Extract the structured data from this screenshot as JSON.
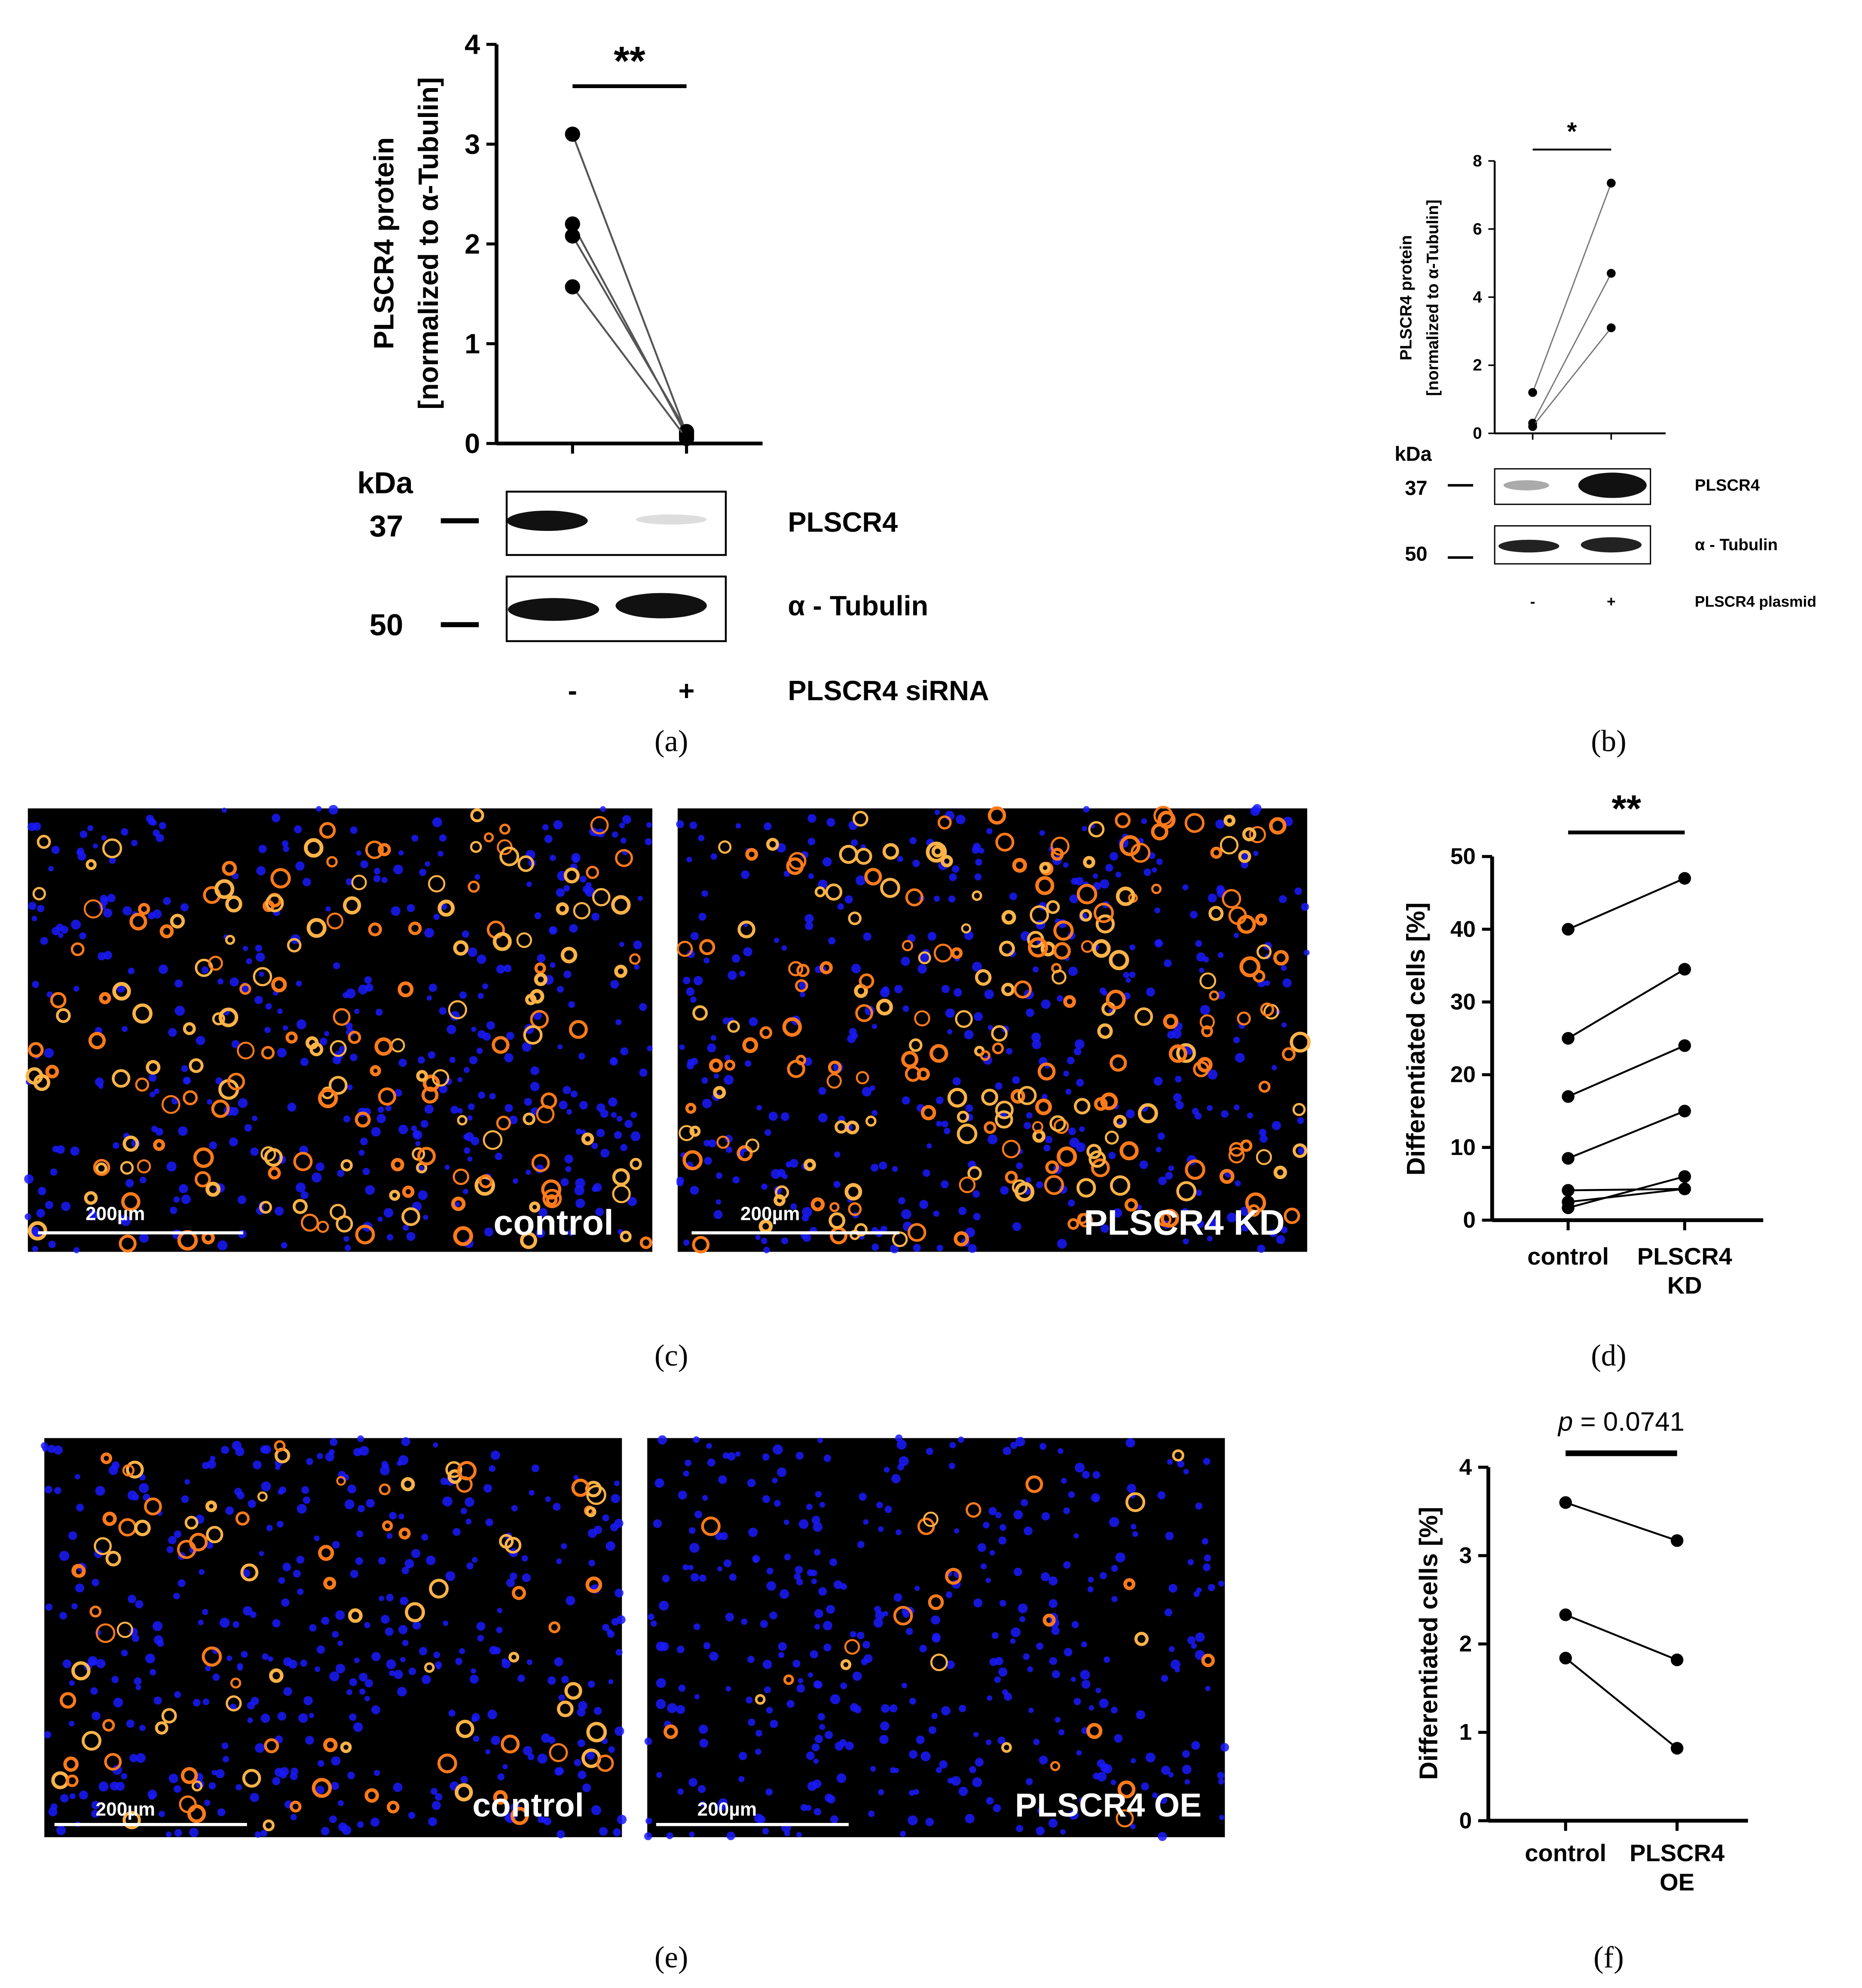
{
  "chart_data": [
    {
      "type": "line",
      "ylabel": [
        "PLSCR4 protein",
        "[normalized to α-Tubulin]"
      ],
      "categories": [
        "-",
        "+"
      ],
      "xlabel": "PLSCR4 siRNA",
      "ylim": [
        0,
        4
      ],
      "yticks": [
        0,
        1,
        2,
        3,
        4
      ],
      "line_color": "#555555",
      "marker_color": "#000000",
      "series": [
        {
          "values": [
            3.1,
            0.1
          ]
        },
        {
          "values": [
            2.2,
            0.08
          ]
        },
        {
          "values": [
            2.08,
            0.12
          ]
        },
        {
          "values": [
            1.57,
            0.05
          ]
        }
      ],
      "significance": "**",
      "blot": {
        "unit": "kDa",
        "rows": [
          {
            "kda": "37",
            "label": "PLSCR4"
          },
          {
            "kda": "50",
            "label": "α - Tubulin"
          }
        ]
      },
      "panel_label": "(a)"
    },
    {
      "type": "line",
      "ylabel": [
        "PLSCR4 protein",
        "[normalized to α-Tubulin]"
      ],
      "categories": [
        "-",
        "+"
      ],
      "xlabel": "PLSCR4 plasmid",
      "ylim": [
        0,
        8
      ],
      "yticks": [
        0,
        2,
        4,
        6,
        8
      ],
      "line_color": "#777777",
      "marker_color": "#000000",
      "series": [
        {
          "values": [
            1.2,
            7.35
          ]
        },
        {
          "values": [
            0.3,
            4.7
          ]
        },
        {
          "values": [
            0.2,
            3.1
          ]
        }
      ],
      "significance": "*",
      "blot": {
        "unit": "kDa",
        "rows": [
          {
            "kda": "37",
            "label": "PLSCR4"
          },
          {
            "kda": "50",
            "label": "α - Tubulin"
          }
        ]
      },
      "panel_label": "(b)"
    },
    {
      "type": "line",
      "ylabel": [
        "Differentiated cells [%]"
      ],
      "categories": [
        "control",
        "PLSCR4 KD"
      ],
      "ylim": [
        0,
        50
      ],
      "yticks": [
        0,
        10,
        20,
        30,
        40,
        50
      ],
      "line_color": "#000000",
      "marker_color": "#000000",
      "series": [
        {
          "values": [
            40,
            47
          ]
        },
        {
          "values": [
            25,
            34.5
          ]
        },
        {
          "values": [
            17,
            24
          ]
        },
        {
          "values": [
            8.5,
            15
          ]
        },
        {
          "values": [
            4.1,
            4.3
          ]
        },
        {
          "values": [
            2.5,
            4.3
          ]
        },
        {
          "values": [
            1.7,
            6
          ]
        }
      ],
      "significance": "**",
      "panel_label": "(d)"
    },
    {
      "type": "line",
      "ylabel": [
        "Differentiated cells [%]"
      ],
      "categories": [
        "control",
        "PLSCR4 OE"
      ],
      "ylim": [
        0,
        4
      ],
      "yticks": [
        0,
        1,
        2,
        3,
        4
      ],
      "line_color": "#000000",
      "marker_color": "#000000",
      "series": [
        {
          "values": [
            3.6,
            3.17
          ]
        },
        {
          "values": [
            2.33,
            1.82
          ]
        },
        {
          "values": [
            1.84,
            0.82
          ]
        }
      ],
      "significance_symbol": "p",
      "significance": "= 0.0741",
      "panel_label": "(f)"
    }
  ],
  "image_panels": [
    {
      "panel_label": "(c)",
      "images": [
        {
          "scale_bar": "200µm",
          "label": "control"
        },
        {
          "scale_bar": "200µm",
          "label": "PLSCR4 KD"
        }
      ]
    },
    {
      "panel_label": "(e)",
      "images": [
        {
          "scale_bar": "200µm",
          "label": "control"
        },
        {
          "scale_bar": "200µm",
          "label": "PLSCR4 OE"
        }
      ]
    }
  ]
}
